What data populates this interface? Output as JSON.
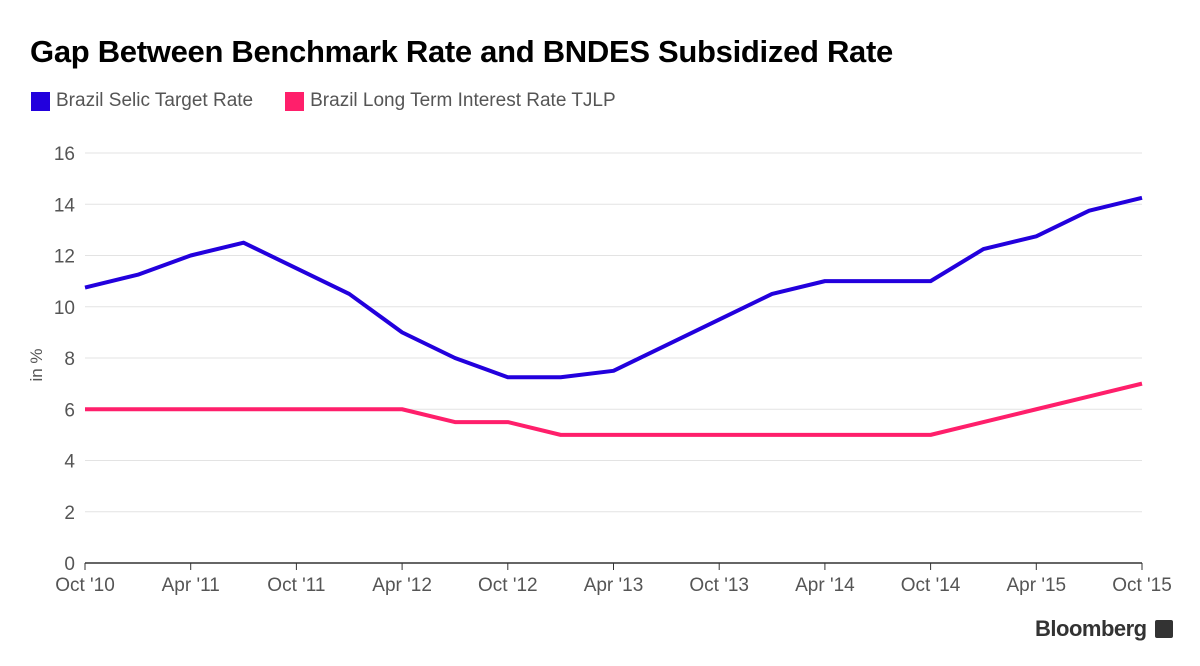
{
  "chart_data": {
    "type": "line",
    "title": "Gap Between Benchmark Rate and BNDES Subsidized Rate",
    "ylabel": "in %",
    "xlabel": "",
    "ylim": [
      0,
      16
    ],
    "yticks": [
      0,
      2,
      4,
      6,
      8,
      10,
      12,
      14,
      16
    ],
    "xtick_labels": [
      "Oct '10",
      "Apr '11",
      "Oct '11",
      "Apr '12",
      "Oct '12",
      "Apr '13",
      "Oct '13",
      "Apr '14",
      "Oct '14",
      "Apr '15",
      "Oct '15"
    ],
    "x_quarters": 20,
    "grid": true,
    "legend_position": "top-left",
    "series": [
      {
        "name": "Brazil Selic Target Rate",
        "color": "#2200dd",
        "values": [
          10.75,
          11.25,
          12,
          12.5,
          11.5,
          10.5,
          9,
          8,
          7.25,
          7.25,
          7.5,
          8.5,
          9.5,
          10.5,
          11,
          11,
          11,
          12.25,
          12.75,
          13.75,
          14.25
        ]
      },
      {
        "name": "Brazil Long Term Interest Rate TJLP",
        "color": "#ff1f6b",
        "values": [
          6,
          6,
          6,
          6,
          6,
          6,
          6,
          5.5,
          5.5,
          5,
          5,
          5,
          5,
          5,
          5,
          5,
          5,
          5.5,
          6,
          6.5,
          7
        ]
      }
    ]
  },
  "footer": {
    "brand": "Bloomberg"
  }
}
